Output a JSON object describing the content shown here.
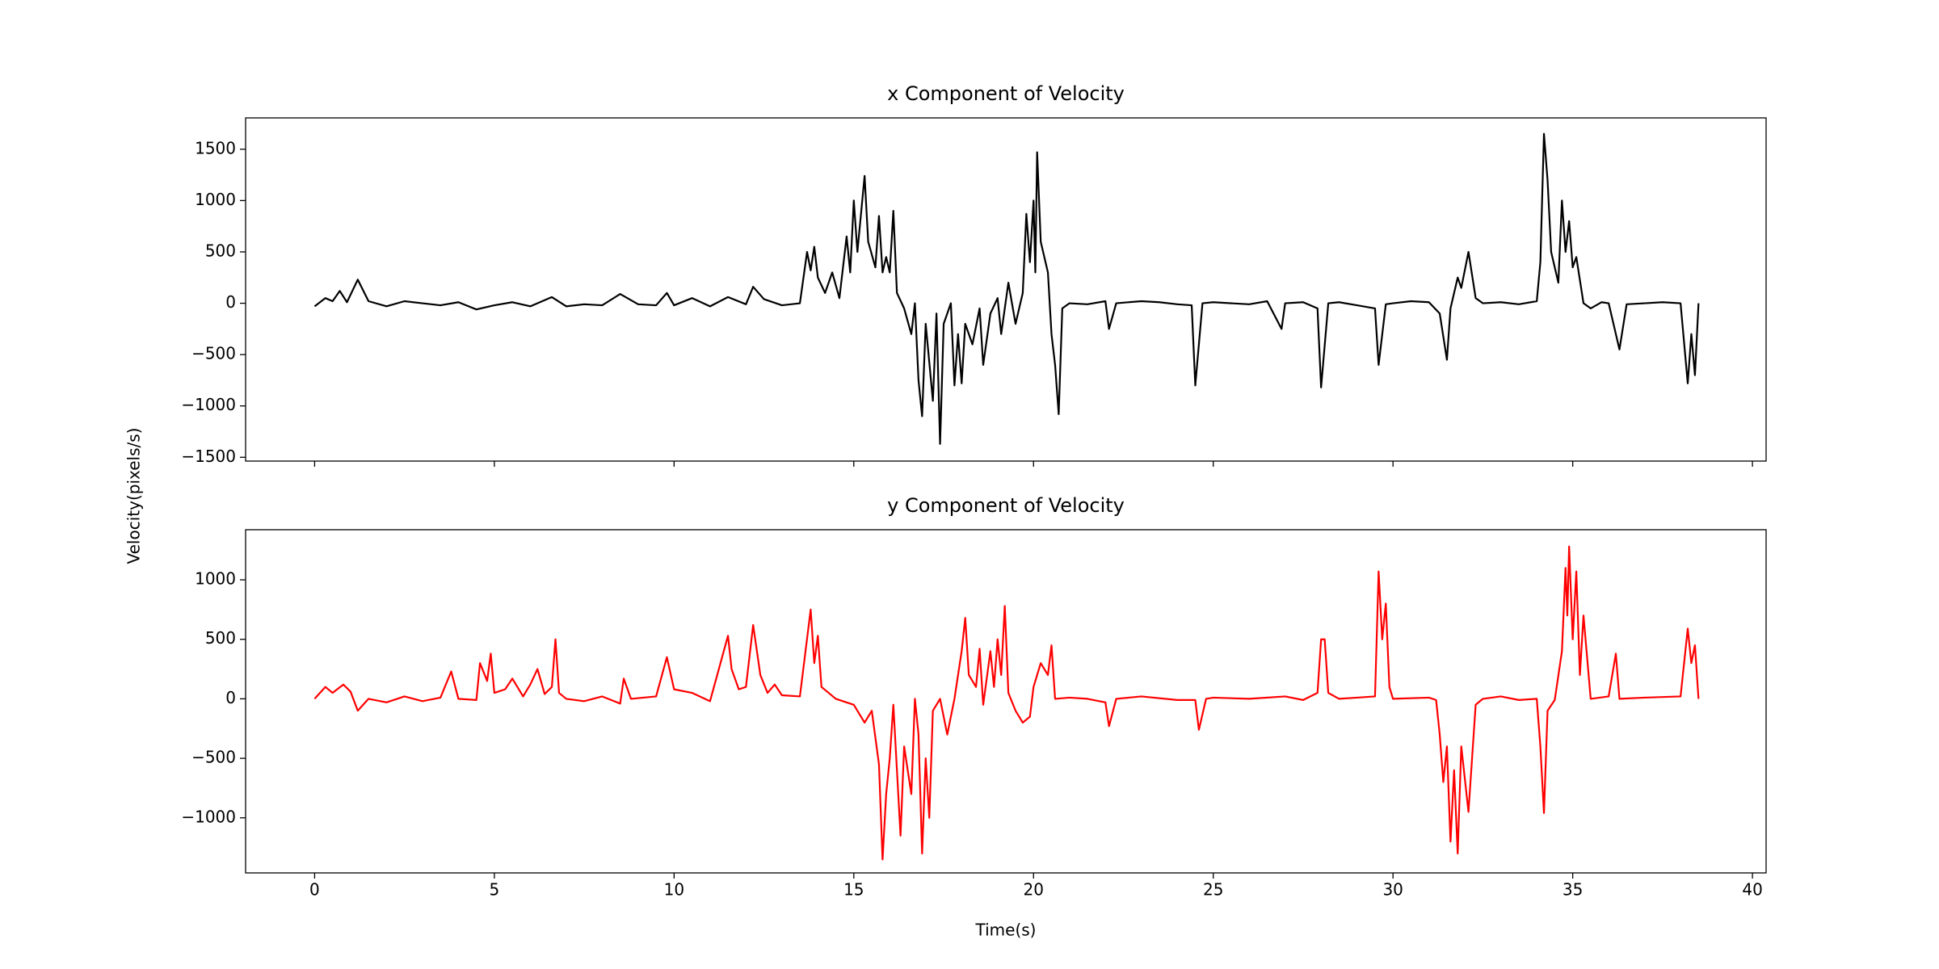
{
  "chart_data": [
    {
      "type": "line",
      "title": "x Component of Velocity",
      "ylabel": "Velocity(pixels/s)",
      "xlim": [
        -1.92,
        40.38
      ],
      "ylim": [
        -1537,
        1805
      ],
      "yticks": [
        {
          "value": -1500,
          "label": "−1500"
        },
        {
          "value": -1000,
          "label": "−1000"
        },
        {
          "value": -500,
          "label": "−500"
        },
        0,
        500,
        1000,
        1500
      ],
      "x": [
        0,
        0.3,
        0.5,
        0.7,
        0.9,
        1.2,
        1.5,
        2,
        2.5,
        3,
        3.5,
        4,
        4.5,
        5,
        5.5,
        6,
        6.6,
        7,
        7.5,
        8,
        8.5,
        9,
        9.5,
        9.8,
        10,
        10.5,
        11,
        11.5,
        12,
        12.2,
        12.5,
        13,
        13.5,
        13.7,
        13.8,
        13.9,
        14,
        14.2,
        14.4,
        14.6,
        14.8,
        14.9,
        15,
        15.1,
        15.3,
        15.4,
        15.6,
        15.7,
        15.8,
        15.9,
        16,
        16.1,
        16.2,
        16.4,
        16.6,
        16.7,
        16.8,
        16.9,
        17,
        17.2,
        17.3,
        17.4,
        17.5,
        17.7,
        17.8,
        17.9,
        18,
        18.1,
        18.3,
        18.5,
        18.6,
        18.8,
        19,
        19.1,
        19.3,
        19.5,
        19.7,
        19.8,
        19.9,
        20,
        20.05,
        20.1,
        20.2,
        20.4,
        20.5,
        20.6,
        20.7,
        20.8,
        21,
        21.5,
        22,
        22.1,
        22.3,
        23,
        23.5,
        24,
        24.4,
        24.5,
        24.7,
        25,
        26,
        26.5,
        26.9,
        27,
        27.5,
        27.9,
        28,
        28.2,
        28.5,
        29,
        29.5,
        29.6,
        29.8,
        30,
        30.5,
        31,
        31.3,
        31.5,
        31.6,
        31.8,
        31.9,
        32.1,
        32.3,
        32.5,
        33,
        33.5,
        34,
        34.1,
        34.2,
        34.3,
        34.4,
        34.6,
        34.7,
        34.8,
        34.9,
        35,
        35.1,
        35.3,
        35.5,
        35.8,
        36,
        36.3,
        36.5,
        37,
        37.5,
        38,
        38.2,
        38.3,
        38.4,
        38.5
      ],
      "series": [
        {
          "color": "#000000",
          "values": [
            -30,
            50,
            20,
            120,
            10,
            230,
            20,
            -30,
            20,
            0,
            -20,
            10,
            -60,
            -20,
            10,
            -30,
            60,
            -30,
            -10,
            -20,
            90,
            -10,
            -20,
            100,
            -20,
            50,
            -30,
            60,
            -10,
            160,
            40,
            -20,
            0,
            500,
            320,
            550,
            250,
            100,
            300,
            50,
            650,
            300,
            1000,
            500,
            1240,
            600,
            350,
            850,
            300,
            450,
            300,
            900,
            100,
            -50,
            -300,
            0,
            -750,
            -1100,
            -200,
            -950,
            -100,
            -1370,
            -200,
            0,
            -800,
            -300,
            -780,
            -200,
            -400,
            -50,
            -600,
            -100,
            50,
            -300,
            200,
            -200,
            100,
            870,
            400,
            1000,
            300,
            1470,
            600,
            300,
            -300,
            -600,
            -1080,
            -50,
            0,
            -10,
            20,
            -250,
            0,
            20,
            10,
            -10,
            -20,
            -800,
            0,
            10,
            -10,
            20,
            -250,
            0,
            10,
            -50,
            -820,
            0,
            10,
            -20,
            -50,
            -600,
            -10,
            0,
            20,
            10,
            -100,
            -550,
            -50,
            250,
            150,
            500,
            50,
            0,
            10,
            -10,
            20,
            400,
            1650,
            1200,
            500,
            200,
            1000,
            500,
            800,
            350,
            450,
            0,
            -50,
            10,
            0,
            -450,
            -10,
            0,
            10,
            0,
            -780,
            -300,
            -700,
            0
          ]
        }
      ]
    },
    {
      "type": "line",
      "title": "y Component of Velocity",
      "xlabel": "Time(s)",
      "xlim": [
        -1.92,
        40.38
      ],
      "ylim": [
        -1463,
        1421
      ],
      "xticks": [
        0,
        5,
        10,
        15,
        20,
        25,
        30,
        35,
        40
      ],
      "yticks": [
        {
          "value": -1000,
          "label": "−1000"
        },
        {
          "value": -500,
          "label": "−500"
        },
        0,
        500,
        1000
      ],
      "x": [
        0,
        0.3,
        0.5,
        0.8,
        1,
        1.2,
        1.5,
        2,
        2.5,
        3,
        3.5,
        3.8,
        4,
        4.5,
        4.6,
        4.8,
        4.9,
        5,
        5.3,
        5.5,
        5.8,
        6,
        6.2,
        6.4,
        6.6,
        6.7,
        6.8,
        7,
        7.5,
        8,
        8.5,
        8.6,
        8.8,
        9.5,
        9.8,
        10,
        10.5,
        11,
        11.5,
        11.6,
        11.8,
        12,
        12.2,
        12.4,
        12.6,
        12.8,
        13,
        13.5,
        13.8,
        13.9,
        14,
        14.1,
        14.5,
        15,
        15.3,
        15.5,
        15.7,
        15.8,
        15.9,
        16,
        16.1,
        16.3,
        16.4,
        16.6,
        16.7,
        16.8,
        16.9,
        17,
        17.1,
        17.2,
        17.4,
        17.6,
        17.8,
        18,
        18.1,
        18.2,
        18.4,
        18.5,
        18.6,
        18.8,
        18.9,
        19,
        19.1,
        19.2,
        19.3,
        19.5,
        19.7,
        19.9,
        20,
        20.2,
        20.4,
        20.5,
        20.6,
        21,
        21.5,
        22,
        22.1,
        22.3,
        23,
        24,
        24.5,
        24.6,
        24.8,
        25,
        26,
        27,
        27.5,
        27.9,
        28,
        28.1,
        28.2,
        28.5,
        29,
        29.5,
        29.6,
        29.7,
        29.8,
        29.9,
        30,
        31,
        31.2,
        31.3,
        31.4,
        31.5,
        31.6,
        31.7,
        31.8,
        31.9,
        32.1,
        32.3,
        32.5,
        33,
        33.5,
        34,
        34.1,
        34.2,
        34.3,
        34.5,
        34.7,
        34.8,
        34.85,
        34.9,
        35,
        35.1,
        35.2,
        35.3,
        35.5,
        36,
        36.2,
        36.3,
        37,
        38,
        38.2,
        38.3,
        38.4,
        38.5
      ],
      "series": [
        {
          "color": "#ff0000",
          "values": [
            0,
            100,
            50,
            120,
            60,
            -100,
            0,
            -30,
            20,
            -20,
            10,
            230,
            0,
            -10,
            300,
            150,
            380,
            50,
            80,
            170,
            20,
            120,
            250,
            40,
            100,
            500,
            50,
            0,
            -20,
            20,
            -40,
            170,
            0,
            20,
            350,
            80,
            50,
            -20,
            530,
            250,
            80,
            100,
            620,
            200,
            50,
            120,
            30,
            20,
            750,
            300,
            530,
            100,
            0,
            -50,
            -200,
            -100,
            -550,
            -1350,
            -800,
            -500,
            -50,
            -1150,
            -400,
            -800,
            0,
            -300,
            -1300,
            -500,
            -1000,
            -100,
            0,
            -300,
            0,
            400,
            680,
            200,
            100,
            420,
            -50,
            400,
            100,
            500,
            200,
            780,
            50,
            -100,
            -200,
            -150,
            100,
            300,
            200,
            450,
            0,
            10,
            0,
            -30,
            -230,
            0,
            20,
            -10,
            -10,
            -260,
            0,
            10,
            0,
            20,
            -10,
            50,
            500,
            500,
            50,
            0,
            10,
            20,
            1070,
            500,
            800,
            100,
            0,
            10,
            -10,
            -300,
            -700,
            -400,
            -1200,
            -600,
            -1300,
            -400,
            -950,
            -50,
            0,
            20,
            -10,
            0,
            -400,
            -960,
            -100,
            -10,
            400,
            1100,
            700,
            1280,
            500,
            1070,
            200,
            700,
            0,
            20,
            380,
            0,
            10,
            20,
            590,
            300,
            450,
            0
          ]
        }
      ]
    }
  ]
}
